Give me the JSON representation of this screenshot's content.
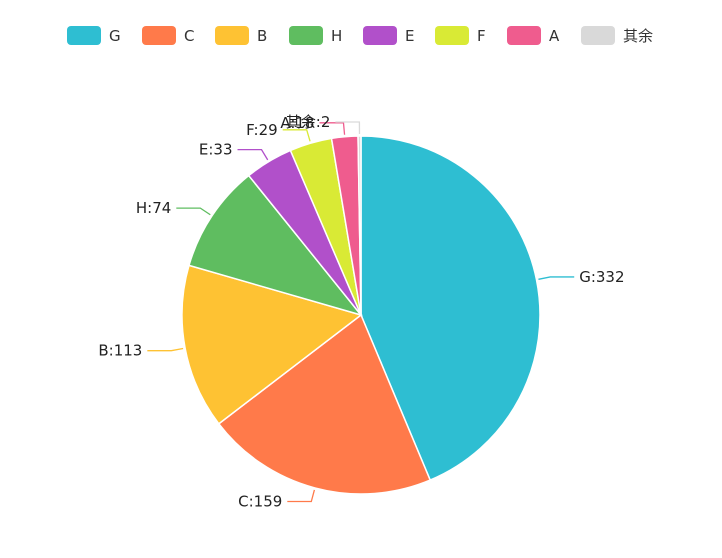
{
  "chart_data": {
    "type": "pie",
    "title": "",
    "legend_position": "top",
    "slices": [
      {
        "name": "G",
        "value": 332,
        "label": "G:332",
        "color": "#2EBED2"
      },
      {
        "name": "C",
        "value": 159,
        "label": "C:159",
        "color": "#FF7A4A"
      },
      {
        "name": "B",
        "value": 113,
        "label": "B:113",
        "color": "#FEC233"
      },
      {
        "name": "H",
        "value": 74,
        "label": "H:74",
        "color": "#5FBD60"
      },
      {
        "name": "E",
        "value": 33,
        "label": "E:33",
        "color": "#B150CA"
      },
      {
        "name": "F",
        "value": 29,
        "label": "F:29",
        "color": "#D9EA35"
      },
      {
        "name": "A",
        "value": 18,
        "label": "A:18",
        "color": "#EF5C8E"
      },
      {
        "name": "其余",
        "value": 2,
        "label": "其余:2",
        "color": "#D9D9D9"
      }
    ]
  }
}
